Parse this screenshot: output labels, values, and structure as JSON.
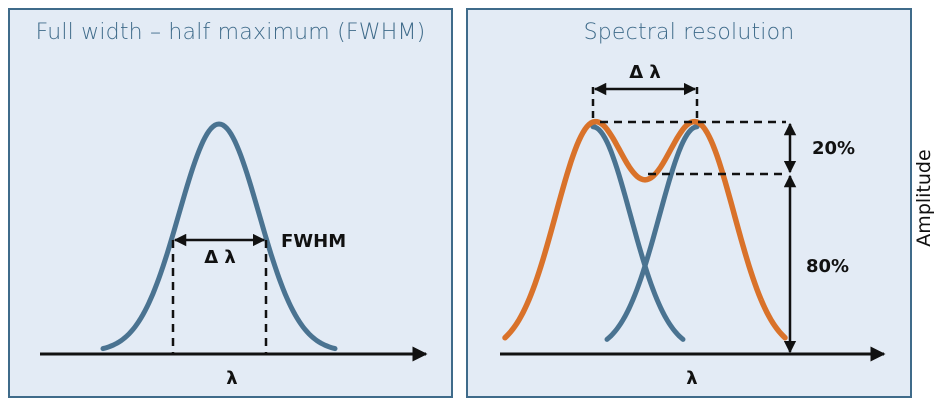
{
  "left_panel": {
    "title": "Full width – half maximum (FWHM)",
    "width_label": "Δ λ",
    "fwhm_label": "FWHM",
    "axis_label": "λ"
  },
  "right_panel": {
    "title": "Spectral resolution",
    "width_label": "Δ λ",
    "dip_label": "20%",
    "height_label": "80%",
    "axis_label": "λ"
  },
  "side_label": "Amplitude",
  "colors": {
    "single_curve": "#4a7391",
    "component_curve": "#4a7391",
    "sum_curve": "#d9722a",
    "frame": "#3f6b8a",
    "panel_bg": "#e3ebf5"
  }
}
